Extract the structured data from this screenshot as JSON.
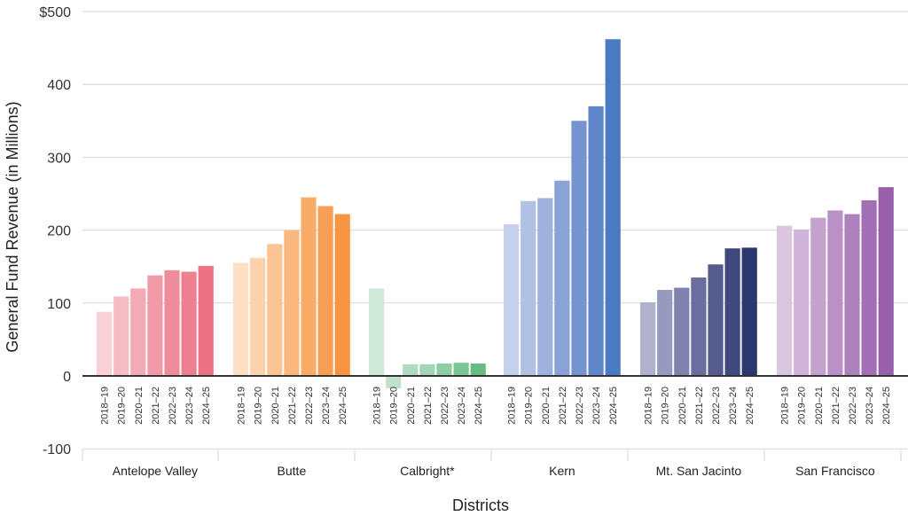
{
  "chart_data": {
    "type": "bar",
    "title": "",
    "xlabel": "Districts",
    "ylabel": "General Fund Revenue (in Millions)",
    "ylim": [
      -100,
      500
    ],
    "yticks": [
      {
        "value": 500,
        "label": "$500"
      },
      {
        "value": 400,
        "label": "400"
      },
      {
        "value": 300,
        "label": "300"
      },
      {
        "value": 200,
        "label": "200"
      },
      {
        "value": 100,
        "label": "100"
      },
      {
        "value": 0,
        "label": "0"
      },
      {
        "value": -100,
        "label": "-100"
      }
    ],
    "grid": true,
    "years": [
      "2018–19",
      "2019–20",
      "2020–21",
      "2021–22",
      "2022–23",
      "2023–24",
      "2024–25"
    ],
    "groups": [
      {
        "name": "Antelope Valley",
        "values": [
          88,
          109,
          120,
          138,
          145,
          143,
          151
        ],
        "colors": [
          "#f8d0d6",
          "#f5bcc4",
          "#f3aab5",
          "#f19ba8",
          "#ef8c9c",
          "#ee7f91",
          "#ec7286"
        ]
      },
      {
        "name": "Butte",
        "values": [
          155,
          162,
          181,
          200,
          245,
          233,
          222
        ],
        "colors": [
          "#fde0c4",
          "#fcd1ab",
          "#fbc493",
          "#fab87f",
          "#f9ab68",
          "#f89f55",
          "#f79542"
        ]
      },
      {
        "name": "Calbright*",
        "values": [
          120,
          -17,
          16,
          16,
          17,
          18,
          17
        ],
        "colors": [
          "#cfe8d7",
          "#c0e2cb",
          "#b1dbbf",
          "#a2d5b3",
          "#8ecda3",
          "#7ac593",
          "#65bd84"
        ]
      },
      {
        "name": "Kern",
        "values": [
          208,
          240,
          244,
          268,
          350,
          370,
          462
        ],
        "colors": [
          "#c4d0ec",
          "#b1c1e5",
          "#9db2de",
          "#89a3d7",
          "#7594cf",
          "#5f86c8",
          "#4a7bc2"
        ]
      },
      {
        "name": "Mt. San Jacinto",
        "values": [
          101,
          118,
          121,
          135,
          153,
          175,
          176
        ],
        "colors": [
          "#b0b1cf",
          "#9799bf",
          "#7f82ae",
          "#6a6e9e",
          "#565c8e",
          "#40497d",
          "#2a386e"
        ]
      },
      {
        "name": "San Francisco",
        "values": [
          206,
          201,
          217,
          227,
          222,
          241,
          259
        ],
        "colors": [
          "#dac6df",
          "#cfb4d7",
          "#c4a2ce",
          "#b991c6",
          "#ae80bd",
          "#a36fb4",
          "#985fac"
        ]
      }
    ]
  }
}
